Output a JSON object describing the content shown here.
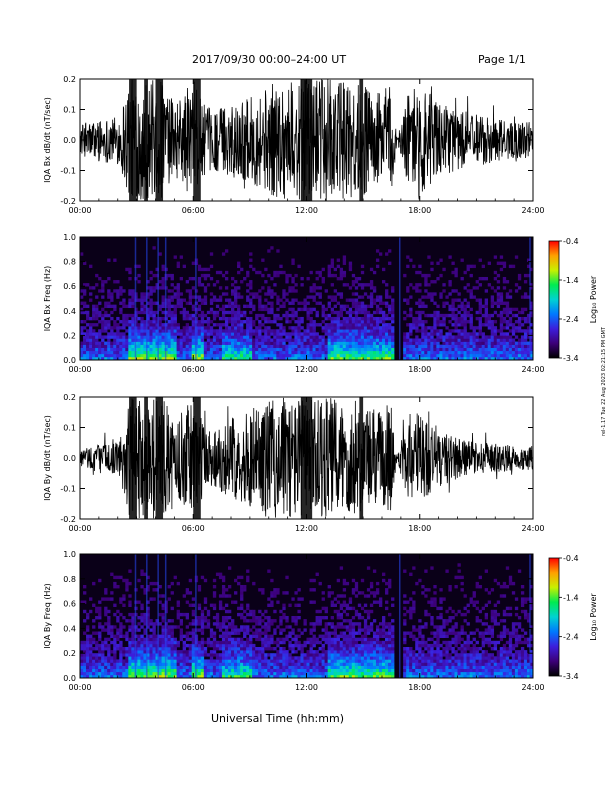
{
  "header": {
    "title": "2017/09/30  00:00–24:00 UT",
    "page": "Page 1/1"
  },
  "footer": {
    "xlabel": "Universal Time (hh:mm)",
    "stamp": "rel-1.17 Tue 22 Aug 2023 02:21:15 PM GMT"
  },
  "colorbar": {
    "label": "Log₁₀ Power",
    "ticks": [
      "-0.4",
      "-1.4",
      "-2.4",
      "-3.4"
    ]
  },
  "chart_data": [
    {
      "type": "line",
      "ylabel": "IQA Bx dB/dt (nT/sec)",
      "xticks": [
        "00:00",
        "06:00",
        "12:00",
        "18:00",
        "24:00"
      ],
      "yticks": [
        "0.2",
        "0.1",
        "0.0",
        "-0.1",
        "-0.2"
      ],
      "xlim": [
        0,
        24
      ],
      "ylim": [
        -0.2,
        0.2
      ],
      "envelope": {
        "hours": [
          0,
          1,
          2,
          2.6,
          3,
          4,
          4.4,
          5,
          6,
          6.5,
          7,
          8,
          9,
          10,
          11,
          12,
          13,
          14,
          15,
          16,
          16.5,
          16.8,
          17.3,
          18,
          19,
          20,
          21,
          22,
          23,
          24
        ],
        "amplitude": [
          0.05,
          0.07,
          0.08,
          0.2,
          0.2,
          0.2,
          0.2,
          0.12,
          0.2,
          0.12,
          0.1,
          0.12,
          0.14,
          0.18,
          0.2,
          0.2,
          0.2,
          0.2,
          0.18,
          0.16,
          0.2,
          0.0,
          0.15,
          0.2,
          0.12,
          0.1,
          0.09,
          0.07,
          0.06,
          0.06
        ]
      }
    },
    {
      "type": "heatmap",
      "ylabel": "IQA Bx Freq (Hz)",
      "xticks": [
        "00:00",
        "06:00",
        "12:00",
        "18:00",
        "24:00"
      ],
      "yticks": [
        "1.0",
        "0.8",
        "0.6",
        "0.4",
        "0.2",
        "0.0"
      ],
      "xlim": [
        0,
        24
      ],
      "ylim": [
        0,
        1.0
      ],
      "zlim": [
        -3.4,
        -0.4
      ]
    },
    {
      "type": "line",
      "ylabel": "IQA By dB/dt (nT/sec)",
      "xticks": [
        "00:00",
        "06:00",
        "12:00",
        "18:00",
        "24:00"
      ],
      "yticks": [
        "0.2",
        "0.1",
        "0.0",
        "-0.1",
        "-0.2"
      ],
      "xlim": [
        0,
        24
      ],
      "ylim": [
        -0.2,
        0.2
      ],
      "envelope": {
        "hours": [
          0,
          1,
          2,
          2.6,
          3,
          4,
          4.4,
          5,
          6,
          6.5,
          7,
          8,
          9,
          10,
          11,
          12,
          13,
          14,
          15,
          16,
          16.5,
          16.8,
          17.3,
          18,
          19,
          20,
          21,
          22,
          23,
          24
        ],
        "amplitude": [
          0.03,
          0.05,
          0.05,
          0.2,
          0.2,
          0.2,
          0.2,
          0.12,
          0.2,
          0.13,
          0.1,
          0.13,
          0.16,
          0.2,
          0.2,
          0.2,
          0.2,
          0.2,
          0.18,
          0.16,
          0.2,
          0.0,
          0.14,
          0.16,
          0.1,
          0.07,
          0.05,
          0.05,
          0.04,
          0.04
        ]
      }
    },
    {
      "type": "heatmap",
      "ylabel": "IQA By Freq (Hz)",
      "xticks": [
        "00:00",
        "06:00",
        "12:00",
        "18:00",
        "24:00"
      ],
      "yticks": [
        "1.0",
        "0.8",
        "0.6",
        "0.4",
        "0.2",
        "0.0"
      ],
      "xlim": [
        0,
        24
      ],
      "ylim": [
        0,
        1.0
      ],
      "zlim": [
        -3.4,
        -0.4
      ]
    }
  ]
}
